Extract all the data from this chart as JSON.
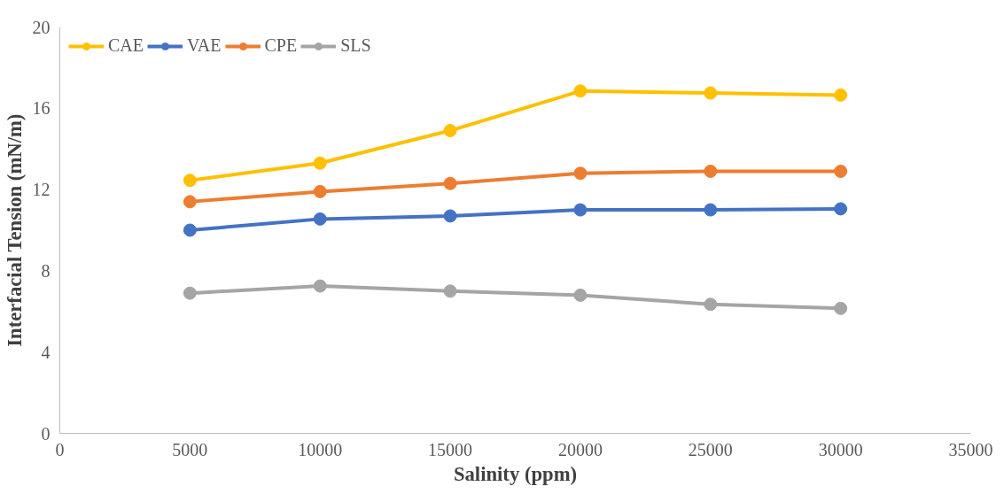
{
  "chart_data": {
    "type": "line",
    "xlabel": "Salinity (ppm)",
    "ylabel": "Interfacial Tension (mN/m)",
    "x": [
      5000,
      10000,
      15000,
      20000,
      25000,
      30000
    ],
    "series": [
      {
        "name": "CAE",
        "color": "#ffc000",
        "values": [
          12.45,
          13.3,
          14.9,
          16.85,
          16.75,
          16.65
        ]
      },
      {
        "name": "VAE",
        "color": "#4472c4",
        "values": [
          10.0,
          10.55,
          10.7,
          11.0,
          11.0,
          11.05
        ]
      },
      {
        "name": "CPE",
        "color": "#ed7d31",
        "values": [
          11.4,
          11.9,
          12.3,
          12.8,
          12.9,
          12.9
        ]
      },
      {
        "name": "SLS",
        "color": "#a5a5a5",
        "values": [
          6.9,
          7.25,
          7.0,
          6.8,
          6.35,
          6.15
        ]
      }
    ],
    "xlim": [
      0,
      35000
    ],
    "xticks": [
      0,
      5000,
      10000,
      15000,
      20000,
      25000,
      30000,
      35000
    ],
    "ylim": [
      0,
      20
    ],
    "yticks": [
      0,
      4,
      8,
      12,
      16,
      20
    ],
    "grid": false,
    "legend": "top left",
    "marker": "circle",
    "line_style": "solid"
  }
}
